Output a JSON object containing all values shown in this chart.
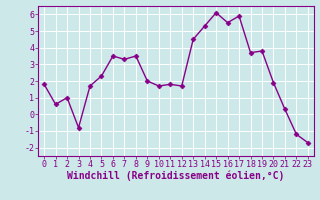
{
  "x": [
    0,
    1,
    2,
    3,
    4,
    5,
    6,
    7,
    8,
    9,
    10,
    11,
    12,
    13,
    14,
    15,
    16,
    17,
    18,
    19,
    20,
    21,
    22,
    23
  ],
  "y": [
    1.8,
    0.6,
    1.0,
    -0.8,
    1.7,
    2.3,
    3.5,
    3.3,
    3.5,
    2.0,
    1.7,
    1.8,
    1.7,
    4.5,
    5.3,
    6.1,
    5.5,
    5.9,
    3.7,
    3.8,
    1.9,
    0.3,
    -1.2,
    -1.7
  ],
  "line_color": "#880088",
  "marker": "D",
  "markersize": 2.5,
  "linewidth": 1.0,
  "xlabel": "Windchill (Refroidissement éolien,°C)",
  "xlim": [
    -0.5,
    23.5
  ],
  "ylim": [
    -2.5,
    6.5
  ],
  "yticks": [
    -2,
    -1,
    0,
    1,
    2,
    3,
    4,
    5,
    6
  ],
  "xticks": [
    0,
    1,
    2,
    3,
    4,
    5,
    6,
    7,
    8,
    9,
    10,
    11,
    12,
    13,
    14,
    15,
    16,
    17,
    18,
    19,
    20,
    21,
    22,
    23
  ],
  "bg_color": "#cce8e8",
  "grid_color": "#ffffff",
  "tick_color": "#880088",
  "label_color": "#880088",
  "xlabel_fontsize": 7.0,
  "tick_fontsize": 6.0,
  "spine_color": "#880088"
}
